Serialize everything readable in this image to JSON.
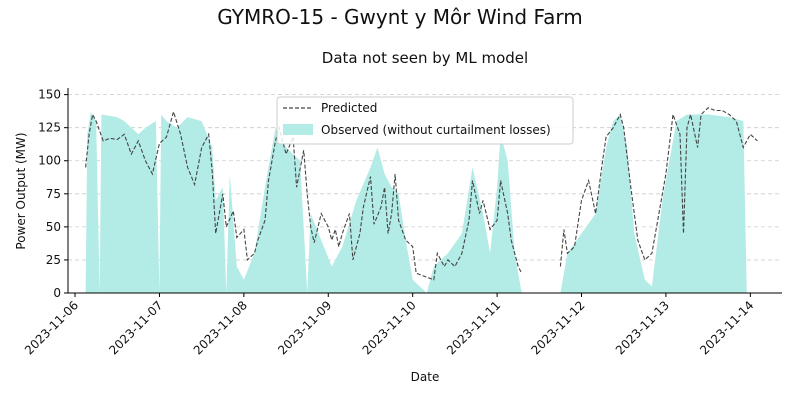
{
  "chart_data": {
    "type": "line",
    "title": "GYMRO-15 - Gwynt y Môr Wind Farm",
    "subtitle": "Data not seen by ML model",
    "xlabel": "Date",
    "ylabel": "Power Output (MW)",
    "xlim": [
      "2023-11-05 22:00",
      "2023-11-14 09:00"
    ],
    "ylim": [
      0,
      155
    ],
    "yticks": [
      0,
      25,
      50,
      75,
      100,
      125,
      150
    ],
    "xticks": [
      "2023-11-06",
      "2023-11-07",
      "2023-11-08",
      "2023-11-09",
      "2023-11-10",
      "2023-11-11",
      "2023-11-12",
      "2023-11-13",
      "2023-11-14"
    ],
    "grid": "y-dashed",
    "legend_position": "top-center",
    "series": [
      {
        "name": "Predicted",
        "style": "dashed",
        "color": "#444444",
        "points": [
          [
            "2023-11-06 03:00",
            95
          ],
          [
            "2023-11-06 04:00",
            120
          ],
          [
            "2023-11-06 05:00",
            135
          ],
          [
            "2023-11-06 06:00",
            130
          ],
          [
            "2023-11-06 08:00",
            115
          ],
          [
            "2023-11-06 10:00",
            117
          ],
          [
            "2023-11-06 12:00",
            116
          ],
          [
            "2023-11-06 14:00",
            120
          ],
          [
            "2023-11-06 16:00",
            105
          ],
          [
            "2023-11-06 18:00",
            115
          ],
          [
            "2023-11-06 20:00",
            100
          ],
          [
            "2023-11-06 22:00",
            90
          ],
          [
            "2023-11-07 00:00",
            113
          ],
          [
            "2023-11-07 02:00",
            118
          ],
          [
            "2023-11-07 04:00",
            137
          ],
          [
            "2023-11-07 06:00",
            120
          ],
          [
            "2023-11-07 08:00",
            95
          ],
          [
            "2023-11-07 10:00",
            82
          ],
          [
            "2023-11-07 12:00",
            110
          ],
          [
            "2023-11-07 14:00",
            120
          ],
          [
            "2023-11-07 15:00",
            92
          ],
          [
            "2023-11-07 16:00",
            45
          ],
          [
            "2023-11-07 18:00",
            75
          ],
          [
            "2023-11-07 19:00",
            50
          ],
          [
            "2023-11-07 21:00",
            62
          ],
          [
            "2023-11-07 22:00",
            42
          ],
          [
            "2023-11-08 00:00",
            48
          ],
          [
            "2023-11-08 01:00",
            25
          ],
          [
            "2023-11-08 03:00",
            30
          ],
          [
            "2023-11-08 04:00",
            40
          ],
          [
            "2023-11-08 06:00",
            55
          ],
          [
            "2023-11-08 07:00",
            85
          ],
          [
            "2023-11-08 09:00",
            115
          ],
          [
            "2023-11-08 10:00",
            125
          ],
          [
            "2023-11-08 12:00",
            105
          ],
          [
            "2023-11-08 14:00",
            118
          ],
          [
            "2023-11-08 15:00",
            80
          ],
          [
            "2023-11-08 17:00",
            108
          ],
          [
            "2023-11-08 18:00",
            75
          ],
          [
            "2023-11-08 19:00",
            50
          ],
          [
            "2023-11-08 20:00",
            38
          ],
          [
            "2023-11-08 22:00",
            60
          ],
          [
            "2023-11-09 00:00",
            50
          ],
          [
            "2023-11-09 01:00",
            40
          ],
          [
            "2023-11-09 02:00",
            48
          ],
          [
            "2023-11-09 03:00",
            35
          ],
          [
            "2023-11-09 04:00",
            45
          ],
          [
            "2023-11-09 06:00",
            60
          ],
          [
            "2023-11-09 07:00",
            25
          ],
          [
            "2023-11-09 09:00",
            45
          ],
          [
            "2023-11-09 10:00",
            65
          ],
          [
            "2023-11-09 12:00",
            88
          ],
          [
            "2023-11-09 13:00",
            52
          ],
          [
            "2023-11-09 15:00",
            65
          ],
          [
            "2023-11-09 16:00",
            80
          ],
          [
            "2023-11-09 17:00",
            45
          ],
          [
            "2023-11-09 18:00",
            60
          ],
          [
            "2023-11-09 19:00",
            90
          ],
          [
            "2023-11-09 20:00",
            55
          ],
          [
            "2023-11-09 22:00",
            40
          ],
          [
            "2023-11-10 00:00",
            35
          ],
          [
            "2023-11-10 01:00",
            15
          ],
          [
            "2023-11-10 06:00",
            10
          ],
          [
            "2023-11-10 07:00",
            30
          ],
          [
            "2023-11-10 09:00",
            20
          ],
          [
            "2023-11-10 10:00",
            25
          ],
          [
            "2023-11-10 12:00",
            20
          ],
          [
            "2023-11-10 14:00",
            30
          ],
          [
            "2023-11-10 16:00",
            55
          ],
          [
            "2023-11-10 17:00",
            85
          ],
          [
            "2023-11-10 19:00",
            60
          ],
          [
            "2023-11-10 20:00",
            70
          ],
          [
            "2023-11-10 22:00",
            48
          ],
          [
            "2023-11-11 00:00",
            55
          ],
          [
            "2023-11-11 01:00",
            85
          ],
          [
            "2023-11-11 03:00",
            60
          ],
          [
            "2023-11-11 04:00",
            40
          ],
          [
            "2023-11-11 06:00",
            20
          ],
          [
            "2023-11-11 07:00",
            15
          ],
          null,
          [
            "2023-11-11 18:00",
            20
          ],
          [
            "2023-11-11 19:00",
            48
          ],
          [
            "2023-11-11 20:00",
            30
          ],
          [
            "2023-11-11 22:00",
            35
          ],
          [
            "2023-11-12 00:00",
            70
          ],
          [
            "2023-11-12 02:00",
            85
          ],
          [
            "2023-11-12 04:00",
            60
          ],
          [
            "2023-11-12 06:00",
            100
          ],
          [
            "2023-11-12 07:00",
            118
          ],
          [
            "2023-11-12 09:00",
            125
          ],
          [
            "2023-11-12 11:00",
            135
          ],
          [
            "2023-11-12 12:00",
            125
          ],
          [
            "2023-11-12 14:00",
            80
          ],
          [
            "2023-11-12 16:00",
            40
          ],
          [
            "2023-11-12 18:00",
            25
          ],
          [
            "2023-11-12 20:00",
            30
          ],
          [
            "2023-11-12 22:00",
            60
          ],
          [
            "2023-11-13 00:00",
            90
          ],
          [
            "2023-11-13 02:00",
            135
          ],
          [
            "2023-11-13 04:00",
            120
          ],
          [
            "2023-11-13 05:00",
            45
          ],
          [
            "2023-11-13 06:00",
            125
          ],
          [
            "2023-11-13 07:00",
            135
          ],
          [
            "2023-11-13 09:00",
            110
          ],
          [
            "2023-11-13 10:00",
            135
          ],
          [
            "2023-11-13 12:00",
            140
          ],
          [
            "2023-11-13 14:00",
            138
          ],
          [
            "2023-11-13 16:00",
            138
          ],
          [
            "2023-11-13 18:00",
            135
          ],
          [
            "2023-11-13 20:00",
            130
          ],
          [
            "2023-11-13 22:00",
            110
          ],
          [
            "2023-11-14 00:00",
            120
          ],
          [
            "2023-11-14 02:00",
            115
          ]
        ]
      },
      {
        "name": "Observed (without curtailment losses)",
        "style": "area",
        "color": "#b3ebe6",
        "points": [
          [
            "2023-11-06 03:00",
            0
          ],
          [
            "2023-11-06 03:30",
            120
          ],
          [
            "2023-11-06 04:30",
            137
          ],
          [
            "2023-11-06 06:00",
            130
          ],
          [
            "2023-11-06 07:00",
            0
          ],
          [
            "2023-11-06 07:30",
            135
          ],
          [
            "2023-11-06 12:00",
            133
          ],
          [
            "2023-11-06 14:00",
            130
          ],
          [
            "2023-11-06 18:00",
            120
          ],
          [
            "2023-11-06 20:00",
            125
          ],
          [
            "2023-11-06 23:00",
            130
          ],
          [
            "2023-11-07 00:00",
            0
          ],
          [
            "2023-11-07 00:30",
            135
          ],
          [
            "2023-11-07 02:00",
            130
          ],
          [
            "2023-11-07 05:00",
            125
          ],
          [
            "2023-11-07 08:00",
            133
          ],
          [
            "2023-11-07 12:00",
            130
          ],
          [
            "2023-11-07 15:00",
            110
          ],
          [
            "2023-11-07 16:00",
            70
          ],
          [
            "2023-11-07 18:00",
            80
          ],
          [
            "2023-11-07 19:00",
            0
          ],
          [
            "2023-11-07 20:00",
            90
          ],
          [
            "2023-11-07 22:00",
            20
          ],
          [
            "2023-11-08 00:00",
            10
          ],
          [
            "2023-11-08 03:00",
            30
          ],
          [
            "2023-11-08 06:00",
            80
          ],
          [
            "2023-11-08 09:00",
            125
          ],
          [
            "2023-11-08 12:00",
            110
          ],
          [
            "2023-11-08 16:00",
            100
          ],
          [
            "2023-11-08 18:00",
            0
          ],
          [
            "2023-11-08 19:00",
            60
          ],
          [
            "2023-11-08 22:00",
            40
          ],
          [
            "2023-11-09 01:00",
            20
          ],
          [
            "2023-11-09 04:00",
            35
          ],
          [
            "2023-11-09 08:00",
            70
          ],
          [
            "2023-11-09 12:00",
            95
          ],
          [
            "2023-11-09 14:00",
            110
          ],
          [
            "2023-11-09 16:00",
            90
          ],
          [
            "2023-11-09 18:00",
            80
          ],
          [
            "2023-11-09 20:00",
            75
          ],
          [
            "2023-11-09 22:00",
            40
          ],
          [
            "2023-11-10 00:00",
            10
          ],
          [
            "2023-11-10 04:00",
            0
          ],
          [
            "2023-11-10 06:00",
            20
          ],
          [
            "2023-11-10 10:00",
            30
          ],
          [
            "2023-11-10 14:00",
            45
          ],
          [
            "2023-11-10 17:00",
            95
          ],
          [
            "2023-11-10 20:00",
            60
          ],
          [
            "2023-11-10 22:00",
            30
          ],
          [
            "2023-11-11 00:00",
            80
          ],
          [
            "2023-11-11 01:00",
            120
          ],
          [
            "2023-11-11 03:00",
            100
          ],
          [
            "2023-11-11 05:00",
            30
          ],
          [
            "2023-11-11 07:00",
            0
          ],
          [
            "2023-11-11 18:00",
            0
          ],
          [
            "2023-11-11 20:00",
            30
          ],
          [
            "2023-11-12 00:00",
            45
          ],
          [
            "2023-11-12 04:00",
            60
          ],
          [
            "2023-11-12 07:00",
            110
          ],
          [
            "2023-11-12 09:00",
            130
          ],
          [
            "2023-11-12 11:00",
            135
          ],
          [
            "2023-11-12 13:00",
            110
          ],
          [
            "2023-11-12 15:00",
            45
          ],
          [
            "2023-11-12 18:00",
            10
          ],
          [
            "2023-11-12 20:00",
            5
          ],
          [
            "2023-11-12 23:00",
            70
          ],
          [
            "2023-11-13 03:00",
            130
          ],
          [
            "2023-11-13 06:00",
            135
          ],
          [
            "2023-11-13 12:00",
            135
          ],
          [
            "2023-11-13 18:00",
            133
          ],
          [
            "2023-11-13 22:00",
            130
          ],
          [
            "2023-11-13 23:00",
            0
          ],
          [
            "2023-11-14 00:00",
            0
          ]
        ]
      }
    ]
  }
}
